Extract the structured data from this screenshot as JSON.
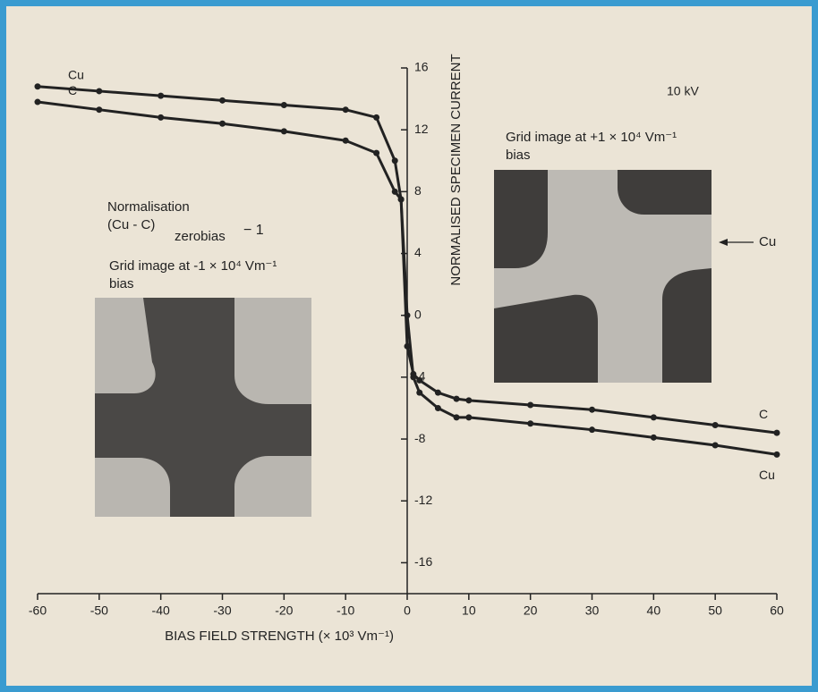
{
  "chart_data": {
    "type": "line",
    "x_label": "BIAS FIELD STRENGTH (× 10³ Vm⁻¹)",
    "y_label": "NORMALISED SPECIMEN CURRENT",
    "voltage": "10 kV",
    "normalisation": {
      "title": "Normalisation",
      "expr": "(Cu - C)",
      "subscript": "zerobias",
      "suffix": "− 1"
    },
    "inset_positive": {
      "line1": "Grid image at +1 × 10⁴ Vm⁻¹",
      "line2": "bias",
      "pointer": "Cu"
    },
    "inset_negative": {
      "line1": "Grid image at -1 × 10⁴ Vm⁻¹",
      "line2": "bias"
    },
    "x": [
      -60,
      -50,
      -40,
      -30,
      -20,
      -10,
      -5,
      -2,
      -1,
      0,
      1,
      2,
      5,
      8,
      10,
      20,
      30,
      40,
      50,
      60
    ],
    "series": [
      {
        "name": "Cu",
        "color": "#222222",
        "values": [
          14.8,
          14.5,
          14.2,
          13.9,
          13.6,
          13.3,
          12.8,
          10,
          7.5,
          0,
          -4,
          -5,
          -6,
          -6.6,
          -6.6,
          -7,
          -7.4,
          -7.9,
          -8.4,
          -9
        ]
      },
      {
        "name": "C",
        "color": "#222222",
        "values": [
          13.8,
          13.3,
          12.8,
          12.4,
          11.9,
          11.3,
          10.5,
          8,
          7.5,
          -2,
          -3.8,
          -4.2,
          -5,
          -5.4,
          -5.5,
          -5.8,
          -6.1,
          -6.6,
          -7.1,
          -7.6
        ]
      }
    ],
    "xlim": [
      -60,
      60
    ],
    "ylim": [
      -18,
      16
    ],
    "xticks": [
      -60,
      -50,
      -40,
      -30,
      -20,
      -10,
      0,
      10,
      20,
      30,
      40,
      50,
      60
    ],
    "yticks": [
      -16,
      -12,
      -8,
      -4,
      0,
      4,
      8,
      12,
      16
    ]
  }
}
